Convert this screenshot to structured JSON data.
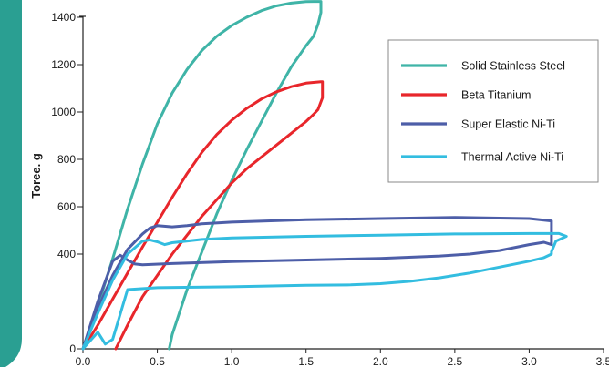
{
  "chart_data": {
    "type": "line",
    "title": "",
    "xlabel": "",
    "ylabel": "Toree. g",
    "xlim": [
      0,
      3.5
    ],
    "ylim": [
      0,
      1500
    ],
    "x_ticks": [
      "0.0",
      "0.5",
      "1.0",
      "1.5",
      "2.0",
      "2.5",
      "3.0",
      "3.5"
    ],
    "y_ticks": [
      "0",
      "400",
      "600",
      "800",
      "1000",
      "1200",
      "1400"
    ],
    "grid": false,
    "legend_position": "top-right",
    "series": [
      {
        "name": "Solid Stainless Steel",
        "color": "#3fb4a7",
        "points": [
          [
            0.0,
            0
          ],
          [
            0.1,
            180
          ],
          [
            0.2,
            380
          ],
          [
            0.3,
            590
          ],
          [
            0.4,
            780
          ],
          [
            0.5,
            950
          ],
          [
            0.6,
            1080
          ],
          [
            0.7,
            1180
          ],
          [
            0.8,
            1260
          ],
          [
            0.9,
            1320
          ],
          [
            1.0,
            1365
          ],
          [
            1.1,
            1400
          ],
          [
            1.2,
            1428
          ],
          [
            1.3,
            1448
          ],
          [
            1.4,
            1460
          ],
          [
            1.5,
            1466
          ],
          [
            1.55,
            1467
          ],
          [
            1.6,
            1467
          ],
          [
            1.6,
            1420
          ],
          [
            1.58,
            1370
          ],
          [
            1.55,
            1320
          ],
          [
            1.5,
            1280
          ],
          [
            1.4,
            1190
          ],
          [
            1.3,
            1080
          ],
          [
            1.2,
            960
          ],
          [
            1.1,
            840
          ],
          [
            1.0,
            710
          ],
          [
            0.9,
            570
          ],
          [
            0.8,
            410
          ],
          [
            0.7,
            250
          ],
          [
            0.6,
            60
          ],
          [
            0.58,
            0
          ]
        ]
      },
      {
        "name": "Beta Titanium",
        "color": "#e8262b",
        "points": [
          [
            0.0,
            0
          ],
          [
            0.1,
            100
          ],
          [
            0.2,
            210
          ],
          [
            0.3,
            320
          ],
          [
            0.4,
            430
          ],
          [
            0.5,
            535
          ],
          [
            0.6,
            640
          ],
          [
            0.7,
            740
          ],
          [
            0.8,
            830
          ],
          [
            0.9,
            905
          ],
          [
            1.0,
            965
          ],
          [
            1.1,
            1015
          ],
          [
            1.2,
            1055
          ],
          [
            1.3,
            1085
          ],
          [
            1.4,
            1107
          ],
          [
            1.5,
            1122
          ],
          [
            1.6,
            1128
          ],
          [
            1.61,
            1128
          ],
          [
            1.61,
            1060
          ],
          [
            1.58,
            1010
          ],
          [
            1.55,
            990
          ],
          [
            1.5,
            960
          ],
          [
            1.4,
            910
          ],
          [
            1.3,
            860
          ],
          [
            1.2,
            810
          ],
          [
            1.1,
            760
          ],
          [
            1.0,
            700
          ],
          [
            0.9,
            630
          ],
          [
            0.8,
            560
          ],
          [
            0.7,
            480
          ],
          [
            0.6,
            400
          ],
          [
            0.5,
            310
          ],
          [
            0.4,
            220
          ],
          [
            0.3,
            100
          ],
          [
            0.22,
            0
          ]
        ]
      },
      {
        "name": "Super Elastic Ni-Ti",
        "color": "#4d5ea8",
        "points": [
          [
            0.0,
            0
          ],
          [
            0.1,
            170
          ],
          [
            0.2,
            310
          ],
          [
            0.3,
            420
          ],
          [
            0.4,
            485
          ],
          [
            0.45,
            510
          ],
          [
            0.5,
            520
          ],
          [
            0.6,
            515
          ],
          [
            0.7,
            520
          ],
          [
            0.8,
            528
          ],
          [
            1.0,
            535
          ],
          [
            1.5,
            545
          ],
          [
            2.0,
            550
          ],
          [
            2.5,
            555
          ],
          [
            3.0,
            550
          ],
          [
            3.15,
            540
          ],
          [
            3.15,
            440
          ],
          [
            3.1,
            450
          ],
          [
            3.0,
            440
          ],
          [
            2.8,
            415
          ],
          [
            2.6,
            400
          ],
          [
            2.4,
            392
          ],
          [
            2.0,
            382
          ],
          [
            1.5,
            375
          ],
          [
            1.0,
            368
          ],
          [
            0.6,
            360
          ],
          [
            0.4,
            355
          ],
          [
            0.35,
            358
          ],
          [
            0.3,
            375
          ],
          [
            0.25,
            395
          ],
          [
            0.2,
            370
          ],
          [
            0.1,
            200
          ],
          [
            0.0,
            0
          ]
        ]
      },
      {
        "name": "Thermal Active Ni-Ti",
        "color": "#33bde0",
        "points": [
          [
            0.0,
            0
          ],
          [
            0.1,
            150
          ],
          [
            0.2,
            290
          ],
          [
            0.3,
            400
          ],
          [
            0.4,
            455
          ],
          [
            0.45,
            460
          ],
          [
            0.5,
            452
          ],
          [
            0.55,
            440
          ],
          [
            0.6,
            448
          ],
          [
            0.8,
            462
          ],
          [
            1.0,
            468
          ],
          [
            1.5,
            475
          ],
          [
            2.0,
            480
          ],
          [
            2.5,
            485
          ],
          [
            3.0,
            487
          ],
          [
            3.2,
            487
          ],
          [
            3.25,
            475
          ],
          [
            3.18,
            455
          ],
          [
            3.15,
            410
          ],
          [
            3.15,
            400
          ],
          [
            3.1,
            385
          ],
          [
            3.0,
            370
          ],
          [
            2.8,
            345
          ],
          [
            2.6,
            320
          ],
          [
            2.4,
            300
          ],
          [
            2.2,
            285
          ],
          [
            2.0,
            275
          ],
          [
            1.8,
            270
          ],
          [
            1.5,
            268
          ],
          [
            1.0,
            262
          ],
          [
            0.5,
            258
          ],
          [
            0.3,
            250
          ],
          [
            0.2,
            40
          ],
          [
            0.15,
            20
          ],
          [
            0.1,
            70
          ],
          [
            0.0,
            0
          ]
        ]
      }
    ]
  }
}
